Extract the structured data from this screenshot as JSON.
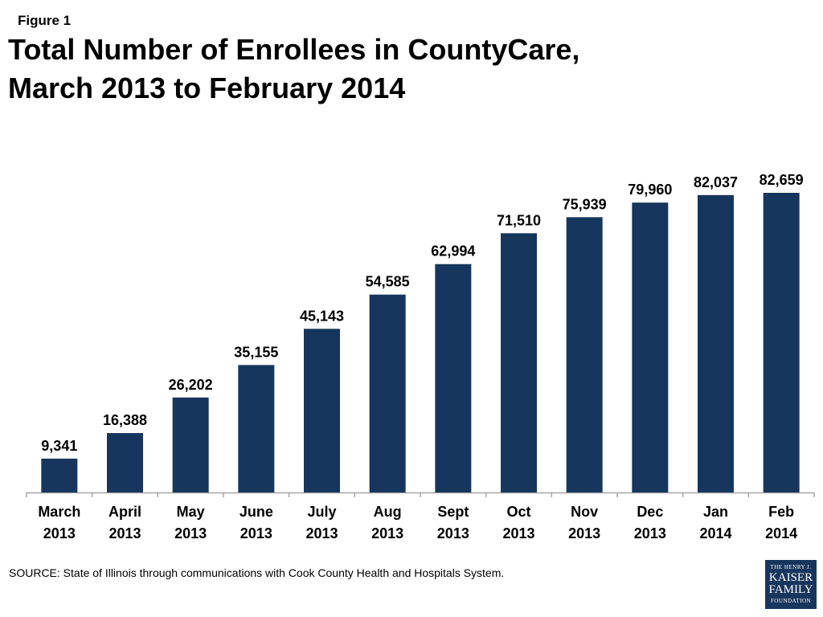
{
  "figure_label": "Figure 1",
  "title_lines": [
    "Total Number of Enrollees in CountyCare,",
    "March 2013 to February 2014"
  ],
  "source": "SOURCE: State of Illinois  through communications with Cook County Health and  Hospitals System.",
  "logo": {
    "line1": "THE HENRY J.",
    "line2": "KAISER",
    "line3": "FAMILY",
    "line4": "FOUNDATION"
  },
  "colors": {
    "bar": "#17365d",
    "axis": "#a6a6a6",
    "text": "#000000"
  },
  "chart_data": {
    "type": "bar",
    "title": "Total Number of Enrollees in CountyCare, March 2013 to February 2014",
    "xlabel": "",
    "ylabel": "",
    "categories": [
      [
        "March",
        "2013"
      ],
      [
        "April",
        "2013"
      ],
      [
        "May",
        "2013"
      ],
      [
        "June",
        "2013"
      ],
      [
        "July",
        "2013"
      ],
      [
        "Aug",
        "2013"
      ],
      [
        "Sept",
        "2013"
      ],
      [
        "Oct",
        "2013"
      ],
      [
        "Nov",
        "2013"
      ],
      [
        "Dec",
        "2013"
      ],
      [
        "Jan",
        "2014"
      ],
      [
        "Feb",
        "2014"
      ]
    ],
    "values": [
      9341,
      16388,
      26202,
      35155,
      45143,
      54585,
      62994,
      71510,
      75939,
      79960,
      82037,
      82659
    ],
    "value_labels": [
      "9,341",
      "16,388",
      "26,202",
      "35,155",
      "45,143",
      "54,585",
      "62,994",
      "71,510",
      "75,939",
      "79,960",
      "82,037",
      "82,659"
    ],
    "ylim": [
      0,
      85000
    ],
    "grid": false,
    "legend": "none"
  }
}
